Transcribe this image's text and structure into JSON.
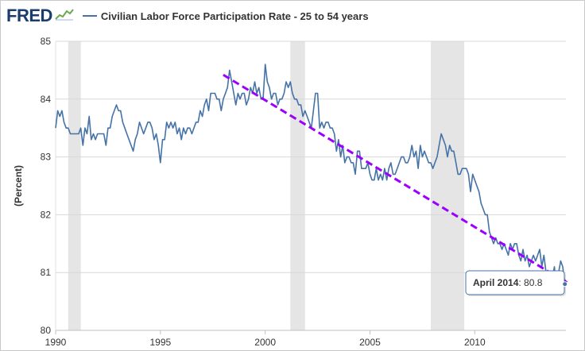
{
  "header": {
    "logo_text": "FRED",
    "logo_icon": "chart-trend-icon",
    "legend_label": "Civilian Labor Force Participation Rate - 25 to 54 years"
  },
  "colors": {
    "series": "#4572a7",
    "trend": "#9b00ff",
    "recession": "#e5e5e5",
    "grid": "#d8d8d8",
    "logo": "#1b3d6d"
  },
  "tooltip": {
    "label": "April 2014",
    "value": "80.8"
  },
  "chart_data": {
    "type": "line",
    "title": "",
    "xlabel": "",
    "ylabel": "(Percent)",
    "xlim": [
      1990,
      2014.35
    ],
    "ylim": [
      80,
      85
    ],
    "x_ticks": [
      {
        "value": 1990,
        "label": "1990"
      },
      {
        "value": 1995,
        "label": "1995"
      },
      {
        "value": 2000,
        "label": "2000"
      },
      {
        "value": 2005,
        "label": "2005"
      },
      {
        "value": 2010,
        "label": "2010"
      }
    ],
    "y_ticks": [
      {
        "value": 80,
        "label": "80"
      },
      {
        "value": 81,
        "label": "81"
      },
      {
        "value": 82,
        "label": "82"
      },
      {
        "value": 83,
        "label": "83"
      },
      {
        "value": 84,
        "label": "84"
      },
      {
        "value": 85,
        "label": "85"
      }
    ],
    "grid": true,
    "recessions": [
      [
        1990.6,
        1991.2
      ],
      [
        2001.2,
        2001.9
      ],
      [
        2007.9,
        2009.5
      ]
    ],
    "series": [
      {
        "name": "Civilian Labor Force Participation Rate - 25 to 54 years",
        "points": [
          [
            1990.0,
            83.5
          ],
          [
            1990.1,
            83.8
          ],
          [
            1990.2,
            83.7
          ],
          [
            1990.3,
            83.8
          ],
          [
            1990.4,
            83.6
          ],
          [
            1990.5,
            83.5
          ],
          [
            1990.6,
            83.5
          ],
          [
            1990.7,
            83.4
          ],
          [
            1990.8,
            83.4
          ],
          [
            1990.9,
            83.4
          ],
          [
            1991.0,
            83.4
          ],
          [
            1991.1,
            83.4
          ],
          [
            1991.2,
            83.5
          ],
          [
            1991.3,
            83.2
          ],
          [
            1991.4,
            83.5
          ],
          [
            1991.5,
            83.4
          ],
          [
            1991.6,
            83.7
          ],
          [
            1991.7,
            83.3
          ],
          [
            1991.8,
            83.4
          ],
          [
            1991.9,
            83.3
          ],
          [
            1992.0,
            83.4
          ],
          [
            1992.1,
            83.4
          ],
          [
            1992.2,
            83.4
          ],
          [
            1992.3,
            83.4
          ],
          [
            1992.4,
            83.2
          ],
          [
            1992.5,
            83.5
          ],
          [
            1992.6,
            83.5
          ],
          [
            1992.7,
            83.7
          ],
          [
            1992.8,
            83.8
          ],
          [
            1992.9,
            83.9
          ],
          [
            1993.0,
            83.8
          ],
          [
            1993.1,
            83.8
          ],
          [
            1993.2,
            83.6
          ],
          [
            1993.3,
            83.5
          ],
          [
            1993.4,
            83.4
          ],
          [
            1993.5,
            83.3
          ],
          [
            1993.6,
            83.2
          ],
          [
            1993.7,
            83.1
          ],
          [
            1993.8,
            83.3
          ],
          [
            1993.9,
            83.4
          ],
          [
            1994.0,
            83.6
          ],
          [
            1994.1,
            83.5
          ],
          [
            1994.2,
            83.4
          ],
          [
            1994.3,
            83.5
          ],
          [
            1994.4,
            83.6
          ],
          [
            1994.5,
            83.6
          ],
          [
            1994.6,
            83.5
          ],
          [
            1994.7,
            83.3
          ],
          [
            1994.8,
            83.4
          ],
          [
            1994.9,
            83.2
          ],
          [
            1995.0,
            82.9
          ],
          [
            1995.1,
            83.3
          ],
          [
            1995.2,
            83.3
          ],
          [
            1995.3,
            83.6
          ],
          [
            1995.4,
            83.5
          ],
          [
            1995.5,
            83.6
          ],
          [
            1995.6,
            83.5
          ],
          [
            1995.7,
            83.6
          ],
          [
            1995.8,
            83.4
          ],
          [
            1995.9,
            83.5
          ],
          [
            1996.0,
            83.3
          ],
          [
            1996.1,
            83.5
          ],
          [
            1996.2,
            83.4
          ],
          [
            1996.3,
            83.5
          ],
          [
            1996.4,
            83.5
          ],
          [
            1996.5,
            83.4
          ],
          [
            1996.6,
            83.5
          ],
          [
            1996.7,
            83.6
          ],
          [
            1996.8,
            83.6
          ],
          [
            1996.9,
            83.8
          ],
          [
            1997.0,
            83.7
          ],
          [
            1997.1,
            83.9
          ],
          [
            1997.2,
            84.0
          ],
          [
            1997.3,
            83.8
          ],
          [
            1997.4,
            84.1
          ],
          [
            1997.5,
            84.1
          ],
          [
            1997.6,
            84.1
          ],
          [
            1997.7,
            84.0
          ],
          [
            1997.8,
            84.0
          ],
          [
            1997.9,
            83.8
          ],
          [
            1998.0,
            84.0
          ],
          [
            1998.1,
            84.1
          ],
          [
            1998.2,
            84.2
          ],
          [
            1998.3,
            84.5
          ],
          [
            1998.4,
            84.3
          ],
          [
            1998.5,
            84.1
          ],
          [
            1998.6,
            83.9
          ],
          [
            1998.7,
            84.1
          ],
          [
            1998.8,
            84.0
          ],
          [
            1998.9,
            84.1
          ],
          [
            1999.0,
            84.1
          ],
          [
            1999.1,
            83.9
          ],
          [
            1999.2,
            84.0
          ],
          [
            1999.3,
            84.2
          ],
          [
            1999.4,
            84.1
          ],
          [
            1999.5,
            84.3
          ],
          [
            1999.6,
            84.1
          ],
          [
            1999.7,
            84.2
          ],
          [
            1999.8,
            84.0
          ],
          [
            1999.9,
            84.0
          ],
          [
            2000.0,
            84.6
          ],
          [
            2000.1,
            84.3
          ],
          [
            2000.2,
            84.2
          ],
          [
            2000.3,
            84.0
          ],
          [
            2000.4,
            84.1
          ],
          [
            2000.5,
            84.1
          ],
          [
            2000.6,
            83.9
          ],
          [
            2000.7,
            84.0
          ],
          [
            2000.8,
            84.0
          ],
          [
            2000.9,
            84.1
          ],
          [
            2001.0,
            84.3
          ],
          [
            2001.1,
            84.2
          ],
          [
            2001.2,
            84.3
          ],
          [
            2001.3,
            84.1
          ],
          [
            2001.4,
            84.0
          ],
          [
            2001.5,
            84.0
          ],
          [
            2001.6,
            83.9
          ],
          [
            2001.7,
            83.9
          ],
          [
            2001.8,
            83.7
          ],
          [
            2001.9,
            83.8
          ],
          [
            2002.0,
            83.7
          ],
          [
            2002.1,
            83.6
          ],
          [
            2002.2,
            83.5
          ],
          [
            2002.3,
            83.8
          ],
          [
            2002.4,
            84.1
          ],
          [
            2002.5,
            84.1
          ],
          [
            2002.6,
            83.5
          ],
          [
            2002.7,
            83.6
          ],
          [
            2002.8,
            83.5
          ],
          [
            2002.9,
            83.6
          ],
          [
            2003.0,
            83.6
          ],
          [
            2003.1,
            83.5
          ],
          [
            2003.2,
            83.5
          ],
          [
            2003.3,
            83.4
          ],
          [
            2003.4,
            83.1
          ],
          [
            2003.5,
            83.3
          ],
          [
            2003.6,
            83.0
          ],
          [
            2003.7,
            83.2
          ],
          [
            2003.8,
            82.9
          ],
          [
            2003.9,
            83.0
          ],
          [
            2004.0,
            83.0
          ],
          [
            2004.1,
            82.9
          ],
          [
            2004.2,
            82.9
          ],
          [
            2004.3,
            82.7
          ],
          [
            2004.4,
            83.1
          ],
          [
            2004.5,
            83.1
          ],
          [
            2004.6,
            82.8
          ],
          [
            2004.7,
            82.8
          ],
          [
            2004.8,
            82.8
          ],
          [
            2004.9,
            82.9
          ],
          [
            2005.0,
            82.7
          ],
          [
            2005.1,
            82.6
          ],
          [
            2005.2,
            82.6
          ],
          [
            2005.3,
            82.8
          ],
          [
            2005.4,
            82.6
          ],
          [
            2005.5,
            82.7
          ],
          [
            2005.6,
            82.6
          ],
          [
            2005.7,
            82.8
          ],
          [
            2005.8,
            82.6
          ],
          [
            2005.9,
            82.8
          ],
          [
            2006.0,
            82.9
          ],
          [
            2006.1,
            82.7
          ],
          [
            2006.2,
            82.7
          ],
          [
            2006.3,
            82.8
          ],
          [
            2006.4,
            82.9
          ],
          [
            2006.5,
            83.0
          ],
          [
            2006.6,
            83.0
          ],
          [
            2006.7,
            82.9
          ],
          [
            2006.8,
            82.9
          ],
          [
            2006.9,
            83.0
          ],
          [
            2007.0,
            83.2
          ],
          [
            2007.1,
            83.0
          ],
          [
            2007.2,
            83.1
          ],
          [
            2007.3,
            82.8
          ],
          [
            2007.4,
            83.2
          ],
          [
            2007.5,
            83.0
          ],
          [
            2007.6,
            83.1
          ],
          [
            2007.7,
            83.0
          ],
          [
            2007.8,
            82.9
          ],
          [
            2007.9,
            82.9
          ],
          [
            2008.0,
            82.8
          ],
          [
            2008.1,
            82.9
          ],
          [
            2008.2,
            83.0
          ],
          [
            2008.3,
            83.2
          ],
          [
            2008.4,
            83.4
          ],
          [
            2008.5,
            83.3
          ],
          [
            2008.6,
            83.2
          ],
          [
            2008.7,
            83.0
          ],
          [
            2008.8,
            83.2
          ],
          [
            2008.9,
            83.1
          ],
          [
            2009.0,
            83.1
          ],
          [
            2009.1,
            82.9
          ],
          [
            2009.2,
            82.7
          ],
          [
            2009.3,
            82.7
          ],
          [
            2009.4,
            82.8
          ],
          [
            2009.5,
            82.8
          ],
          [
            2009.6,
            82.8
          ],
          [
            2009.7,
            82.7
          ],
          [
            2009.8,
            82.4
          ],
          [
            2009.9,
            82.7
          ],
          [
            2010.0,
            82.6
          ],
          [
            2010.1,
            82.5
          ],
          [
            2010.2,
            82.4
          ],
          [
            2010.3,
            82.2
          ],
          [
            2010.4,
            82.1
          ],
          [
            2010.5,
            82.0
          ],
          [
            2010.6,
            82.0
          ],
          [
            2010.7,
            81.7
          ],
          [
            2010.8,
            81.6
          ],
          [
            2010.9,
            81.5
          ],
          [
            2011.0,
            81.6
          ],
          [
            2011.1,
            81.5
          ],
          [
            2011.2,
            81.5
          ],
          [
            2011.3,
            81.4
          ],
          [
            2011.4,
            81.5
          ],
          [
            2011.5,
            81.4
          ],
          [
            2011.6,
            81.3
          ],
          [
            2011.7,
            81.5
          ],
          [
            2011.8,
            81.4
          ],
          [
            2011.9,
            81.5
          ],
          [
            2012.0,
            81.5
          ],
          [
            2012.1,
            81.3
          ],
          [
            2012.2,
            81.2
          ],
          [
            2012.3,
            81.4
          ],
          [
            2012.4,
            81.2
          ],
          [
            2012.5,
            81.3
          ],
          [
            2012.6,
            81.1
          ],
          [
            2012.7,
            81.2
          ],
          [
            2012.8,
            81.3
          ],
          [
            2012.9,
            81.2
          ],
          [
            2013.0,
            81.3
          ],
          [
            2013.1,
            81.4
          ],
          [
            2013.2,
            81.1
          ],
          [
            2013.3,
            81.3
          ],
          [
            2013.4,
            81.0
          ],
          [
            2013.5,
            80.9
          ],
          [
            2013.6,
            80.9
          ],
          [
            2013.7,
            80.9
          ],
          [
            2013.8,
            81.1
          ],
          [
            2013.9,
            80.7
          ],
          [
            2014.0,
            81.0
          ],
          [
            2014.1,
            81.2
          ],
          [
            2014.2,
            81.1
          ],
          [
            2014.3,
            80.8
          ]
        ]
      },
      {
        "name": "",
        "style": "dashed",
        "points": [
          [
            1998.0,
            84.42
          ],
          [
            2014.3,
            80.85
          ]
        ]
      }
    ],
    "annotations": [
      {
        "type": "tooltip",
        "x": 2014.3,
        "y": 80.8,
        "text": "April 2014: 80.8"
      }
    ]
  }
}
